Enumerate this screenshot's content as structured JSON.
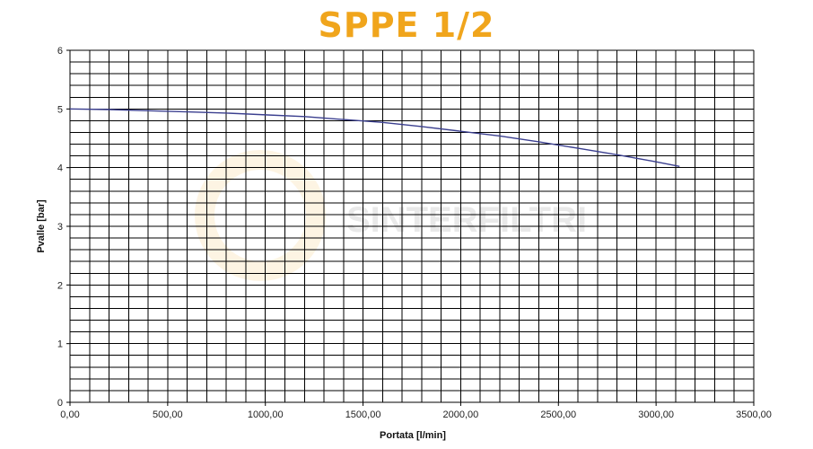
{
  "page": {
    "title": "SPPE 1/2"
  },
  "chart_data": {
    "type": "line",
    "title": "SPPE 1/2",
    "xlabel": "Portata [l/min]",
    "ylabel": "Pvalle [bar]",
    "xlim": [
      0,
      3500
    ],
    "ylim": [
      0,
      6
    ],
    "x_ticks": [
      "0,00",
      "500,00",
      "1000,00",
      "1500,00",
      "2000,00",
      "2500,00",
      "3000,00",
      "3500,00"
    ],
    "y_ticks": [
      "0",
      "1",
      "2",
      "3",
      "4",
      "5",
      "6"
    ],
    "grid": true,
    "watermark": "SINTERFILTRI",
    "colors": {
      "line": "#3b3f8f",
      "grid": "#000000",
      "title": "#f0a51c"
    },
    "series": [
      {
        "x": [
          0,
          200,
          400,
          600,
          800,
          1000,
          1200,
          1400,
          1600,
          1800,
          2000,
          2200,
          2400,
          2600,
          2800,
          3000,
          3120
        ],
        "values": [
          5.0,
          4.99,
          4.97,
          4.95,
          4.93,
          4.9,
          4.87,
          4.82,
          4.77,
          4.7,
          4.62,
          4.54,
          4.44,
          4.33,
          4.22,
          4.1,
          4.02
        ]
      }
    ]
  }
}
